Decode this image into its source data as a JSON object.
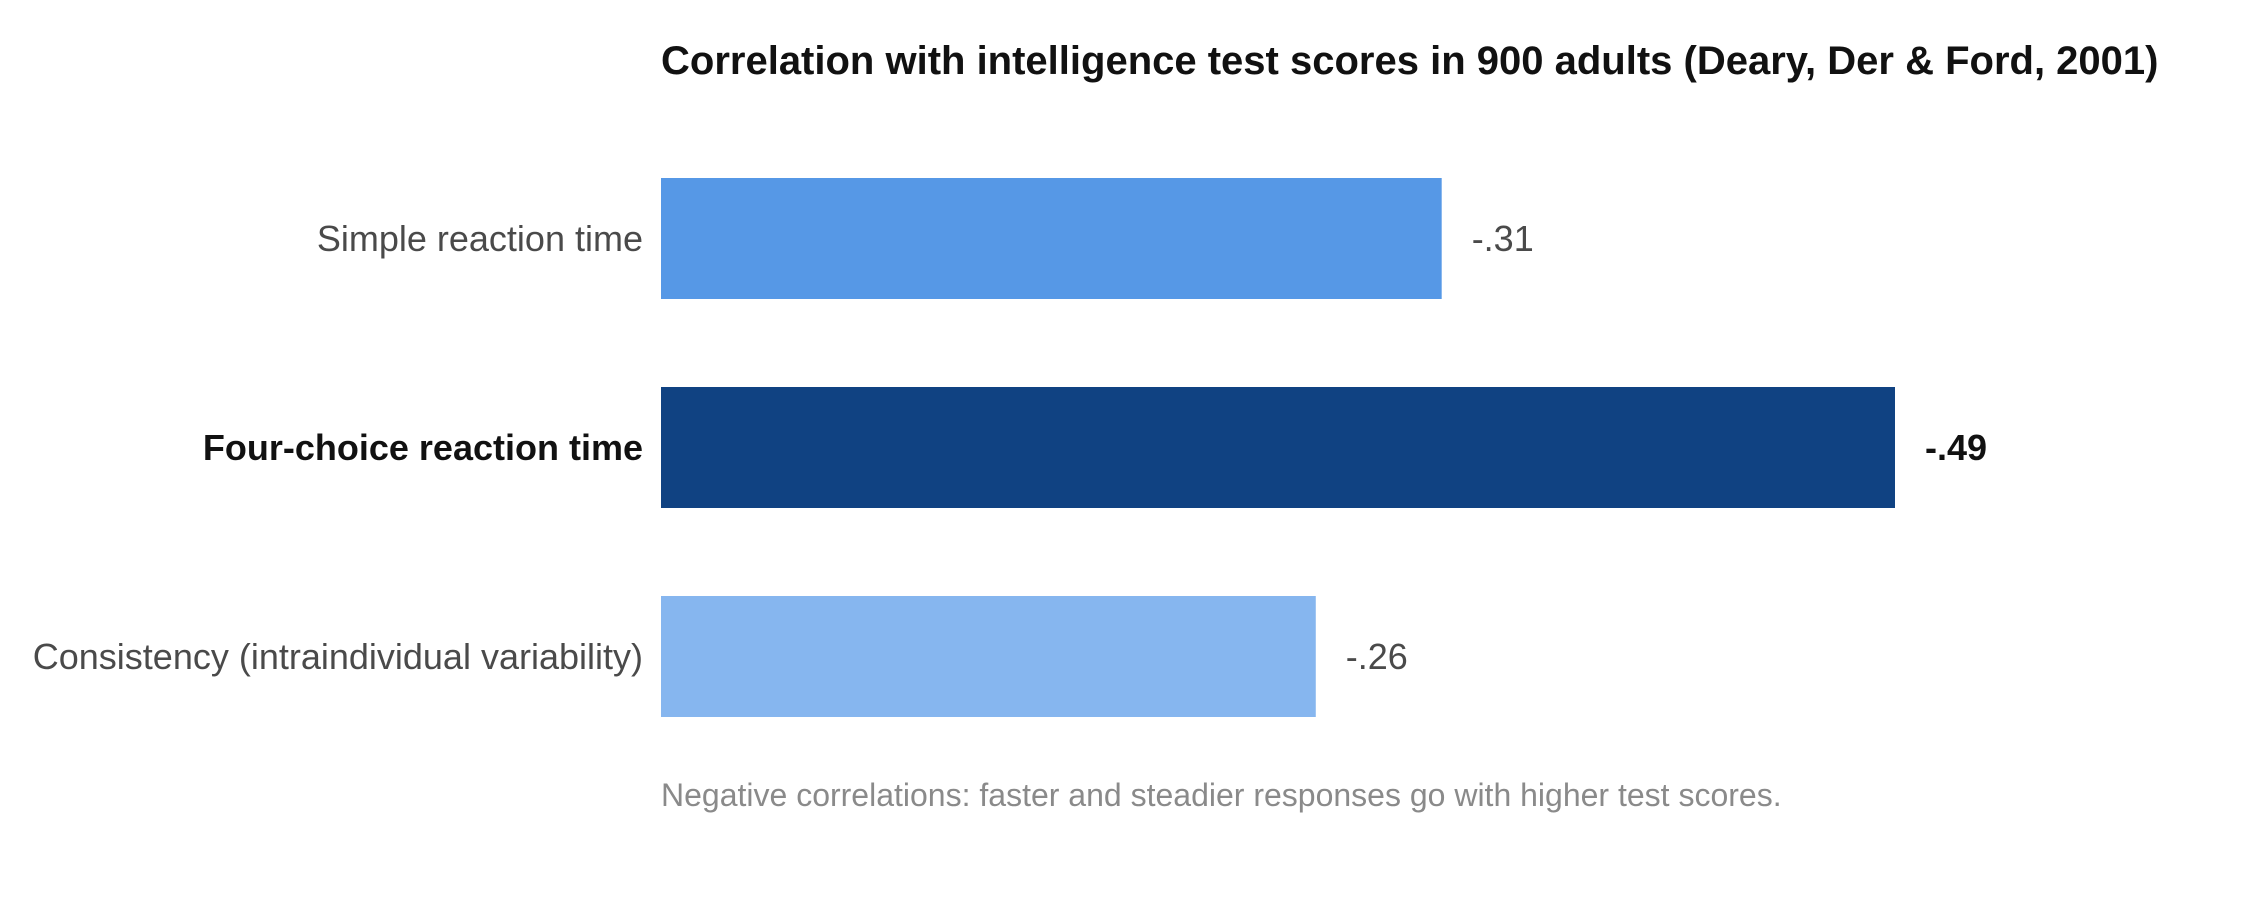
{
  "chart_data": {
    "type": "bar",
    "orientation": "horizontal",
    "title": "Correlation with intelligence test scores in 900 adults (Deary, Der & Ford, 2001)",
    "categories": [
      "Simple reaction time",
      "Four-choice reaction time",
      "Consistency (intraindividual variability)"
    ],
    "values": [
      -0.31,
      -0.49,
      -0.26
    ],
    "value_labels": [
      "-.31",
      "-.49",
      "-.26"
    ],
    "bar_colors": [
      "#5698e6",
      "#104282",
      "#86b6ef"
    ],
    "emphasized": [
      false,
      true,
      false
    ],
    "xlim": [
      0,
      -0.49
    ],
    "grid": false,
    "note": "Negative correlations: faster and steadier responses go with higher test scores."
  }
}
